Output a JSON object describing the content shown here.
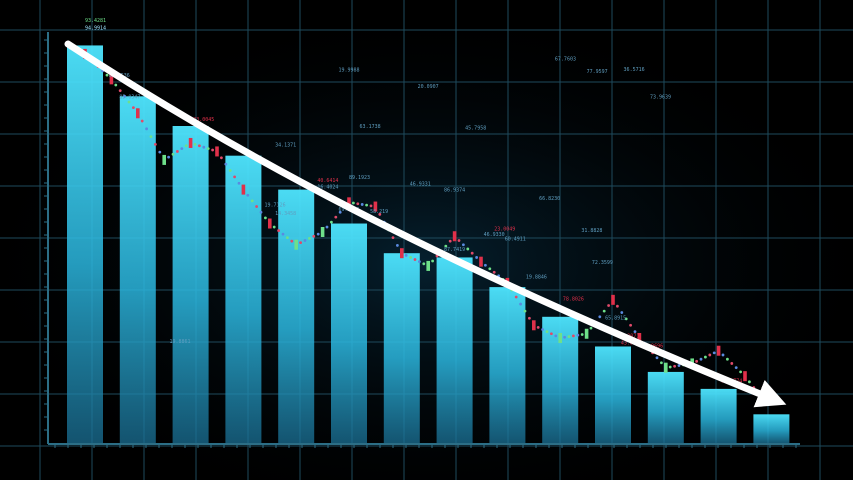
{
  "chart_data": {
    "type": "bar",
    "title": "",
    "xlabel": "",
    "ylabel": "",
    "ylim": [
      0,
      100
    ],
    "grid": true,
    "legend": "none",
    "trend": "declining",
    "series": [
      {
        "values": [
          94,
          82,
          75,
          68,
          60,
          52,
          45,
          44,
          37,
          30,
          23,
          17,
          13,
          7
        ]
      }
    ],
    "overlay_line": [
      {
        "x": 0,
        "y": 92
      },
      {
        "x": 0.5,
        "y": 86
      },
      {
        "x": 1,
        "y": 78
      },
      {
        "x": 1.5,
        "y": 67
      },
      {
        "x": 2,
        "y": 71
      },
      {
        "x": 2.5,
        "y": 69
      },
      {
        "x": 3,
        "y": 60
      },
      {
        "x": 3.5,
        "y": 52
      },
      {
        "x": 4,
        "y": 47
      },
      {
        "x": 4.5,
        "y": 50
      },
      {
        "x": 5,
        "y": 57
      },
      {
        "x": 5.5,
        "y": 56
      },
      {
        "x": 6,
        "y": 45
      },
      {
        "x": 6.5,
        "y": 42
      },
      {
        "x": 7,
        "y": 49
      },
      {
        "x": 7.5,
        "y": 43
      },
      {
        "x": 8,
        "y": 38
      },
      {
        "x": 8.5,
        "y": 28
      },
      {
        "x": 9,
        "y": 25
      },
      {
        "x": 9.5,
        "y": 26
      },
      {
        "x": 10,
        "y": 34
      },
      {
        "x": 10.5,
        "y": 25
      },
      {
        "x": 11,
        "y": 18
      },
      {
        "x": 11.5,
        "y": 19
      },
      {
        "x": 12,
        "y": 22
      },
      {
        "x": 12.5,
        "y": 16
      },
      {
        "x": 13,
        "y": 8
      }
    ],
    "annotations": [
      {
        "text": "93.4281",
        "x": 0,
        "y": 99.5,
        "color": "#6ee08a"
      },
      {
        "text": "94.9914",
        "x": 0,
        "y": 97.8,
        "color": "#9fe4ff"
      },
      {
        "text": "88.5536",
        "x": 0.45,
        "y": 86.5,
        "color": "#5f9ec0"
      },
      {
        "text": "85.0347",
        "x": 0.65,
        "y": 81.5,
        "color": "#5f9ec0"
      },
      {
        "text": "23.0045",
        "x": 2.05,
        "y": 76.2,
        "color": "#e0304a"
      },
      {
        "text": "34.1371",
        "x": 3.6,
        "y": 70.2,
        "color": "#5f9ec0"
      },
      {
        "text": "19.9988",
        "x": 4.8,
        "y": 87.8,
        "color": "#5f9ec0"
      },
      {
        "text": "20.0907",
        "x": 6.3,
        "y": 84.0,
        "color": "#5f9ec0"
      },
      {
        "text": "63.1738",
        "x": 5.2,
        "y": 74.5,
        "color": "#5f9ec0"
      },
      {
        "text": "45.7958",
        "x": 7.2,
        "y": 74.2,
        "color": "#5f9ec0"
      },
      {
        "text": "89.1923",
        "x": 5.0,
        "y": 62.5,
        "color": "#5f9ec0"
      },
      {
        "text": "40.6414",
        "x": 4.4,
        "y": 61.8,
        "color": "#e0304a"
      },
      {
        "text": "16.4024",
        "x": 4.4,
        "y": 60.3,
        "color": "#5f9ec0"
      },
      {
        "text": "69.5566",
        "x": 4.8,
        "y": 55.0,
        "color": "#5f9ec0"
      },
      {
        "text": "19.7126",
        "x": 3.4,
        "y": 56.0,
        "color": "#5f9ec0"
      },
      {
        "text": "14.3458",
        "x": 3.6,
        "y": 54.0,
        "color": "#5f9ec0"
      },
      {
        "text": "86.9374",
        "x": 6.8,
        "y": 59.5,
        "color": "#5f9ec0"
      },
      {
        "text": "46.9331",
        "x": 6.15,
        "y": 61.0,
        "color": "#5f9ec0"
      },
      {
        "text": "58.219",
        "x": 5.4,
        "y": 54.5,
        "color": "#5f9ec0"
      },
      {
        "text": "87.7419",
        "x": 6.8,
        "y": 45.5,
        "color": "#5f9ec0"
      },
      {
        "text": "23.0049",
        "x": 7.75,
        "y": 50.3,
        "color": "#e0304a"
      },
      {
        "text": "46.9330",
        "x": 7.55,
        "y": 49.0,
        "color": "#5f9ec0"
      },
      {
        "text": "60.4911",
        "x": 7.95,
        "y": 48.0,
        "color": "#5f9ec0"
      },
      {
        "text": "19.8846",
        "x": 8.35,
        "y": 39.0,
        "color": "#5f9ec0"
      },
      {
        "text": "66.8230",
        "x": 8.6,
        "y": 57.5,
        "color": "#5f9ec0"
      },
      {
        "text": "67.7603",
        "x": 8.9,
        "y": 90.5,
        "color": "#5f9ec0"
      },
      {
        "text": "77.9597",
        "x": 9.5,
        "y": 87.5,
        "color": "#5f9ec0"
      },
      {
        "text": "36.5716",
        "x": 10.2,
        "y": 88.0,
        "color": "#5f9ec0"
      },
      {
        "text": "73.9639",
        "x": 10.7,
        "y": 81.5,
        "color": "#5f9ec0"
      },
      {
        "text": "72.3599",
        "x": 9.6,
        "y": 42.5,
        "color": "#5f9ec0"
      },
      {
        "text": "31.8828",
        "x": 9.4,
        "y": 50.0,
        "color": "#5f9ec0"
      },
      {
        "text": "78.8026",
        "x": 9.05,
        "y": 33.8,
        "color": "#e0304a"
      },
      {
        "text": "65.8915",
        "x": 9.85,
        "y": 29.4,
        "color": "#5f9ec0"
      },
      {
        "text": "83.2071",
        "x": 10.1,
        "y": 25.1,
        "color": "#e0304a"
      },
      {
        "text": "43.6537",
        "x": 10.15,
        "y": 23.5,
        "color": "#e0304a"
      },
      {
        "text": "41.9696",
        "x": 10.55,
        "y": 22.8,
        "color": "#e0304a"
      },
      {
        "text": "38.1774",
        "x": 12.05,
        "y": 14.5,
        "color": "#e0304a"
      },
      {
        "text": "19.8861",
        "x": 1.6,
        "y": 23.8,
        "color": "#5f9ec0"
      }
    ]
  },
  "colors": {
    "background": "#000000",
    "bar_top": "#5ff0ff",
    "bar_bottom": "#1e7fa5",
    "grid": "#1e4a5c",
    "axis": "#2c6e86",
    "arrow": "#ffffff"
  }
}
